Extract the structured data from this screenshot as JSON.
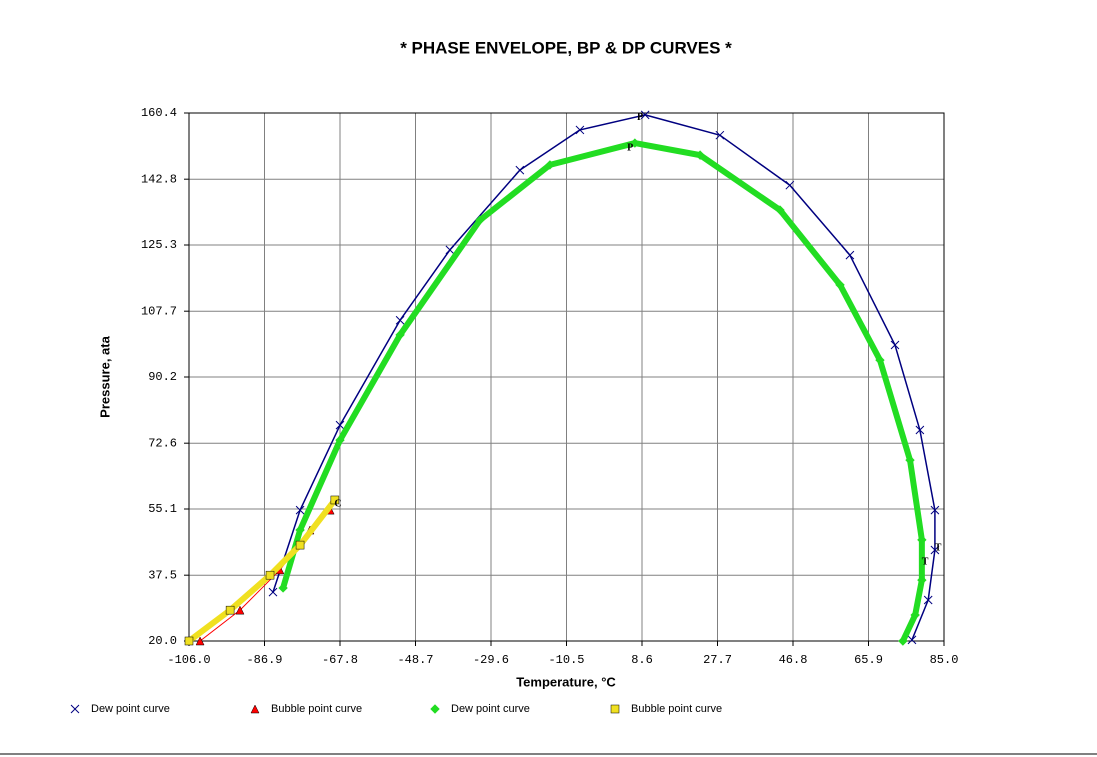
{
  "chart_data": {
    "type": "line",
    "title": "* PHASE ENVELOPE, BP & DP CURVES *",
    "x_label": "Temperature, °C",
    "y_label": "Pressure,   ata",
    "xlim": [
      -106,
      85
    ],
    "ylim": [
      20,
      160.4
    ],
    "xticks": [
      {
        "value": -106,
        "label": "-106.0"
      },
      -86.9,
      -67.8,
      -48.7,
      -29.6,
      -10.5,
      8.6,
      27.7,
      46.8,
      65.9,
      {
        "value": 85,
        "label": "85.0"
      }
    ],
    "yticks": [
      {
        "value": 20,
        "label": "20.0"
      },
      37.5,
      55.1,
      72.6,
      90.2,
      107.7,
      125.3,
      142.8,
      160.4
    ],
    "grid": true,
    "series": [
      {
        "name": "Dew point curve",
        "color": "#000080",
        "marker": "x",
        "x": [
          -84.75,
          -77.9,
          -67.8,
          -52.6,
          -40,
          -22.3,
          -7.1,
          9.4,
          28.3,
          46,
          61.2,
          72.6,
          78.9,
          82.7,
          82.7,
          81,
          76.9
        ],
        "values": [
          33.0,
          54.8,
          77.4,
          105.3,
          124,
          145.2,
          155.9,
          159.9,
          154.5,
          141.2,
          122.6,
          98.7,
          76.1,
          54.8,
          44.2,
          30.9,
          20.3
        ]
      },
      {
        "name": "Bubble point curve",
        "color": "#ff0000",
        "marker": "triangle",
        "x": [
          -103.2,
          -93.1,
          -83,
          -75.4,
          -70.3
        ],
        "values": [
          20,
          28.2,
          38.9,
          49.5,
          54.8
        ]
      },
      {
        "name": "Dew point curve",
        "color": "#22dd22",
        "marker": "diamond",
        "x": [
          -82.2,
          -77.9,
          -67.8,
          -52.6,
          -32.4,
          -14.7,
          6.8,
          23.3,
          43.5,
          58.7,
          68.8,
          76.4,
          79.4,
          79.4,
          77.7,
          74.6
        ],
        "values": [
          34.1,
          49.5,
          73.4,
          101.4,
          131.9,
          146.6,
          152.4,
          149.2,
          134.6,
          114.7,
          94.7,
          68.1,
          46.9,
          36.2,
          26.9,
          20
        ]
      },
      {
        "name": "Bubble point curve",
        "color": "#f0e020",
        "marker": "square",
        "x": [
          -106,
          -95.6,
          -85.5,
          -77.9,
          -69.1
        ],
        "values": [
          20,
          28.2,
          37.5,
          45.5,
          57.5
        ]
      }
    ],
    "annotations": [
      {
        "text": "P",
        "x": 8.1,
        "y": 159.1
      },
      {
        "text": "P",
        "x": 5.6,
        "y": 151.1
      },
      {
        "text": "T",
        "x": 83.5,
        "y": 44.7
      },
      {
        "text": "T",
        "x": 80.2,
        "y": 41.0
      },
      {
        "text": "C",
        "x": -68.3,
        "y": 56.4
      }
    ]
  }
}
